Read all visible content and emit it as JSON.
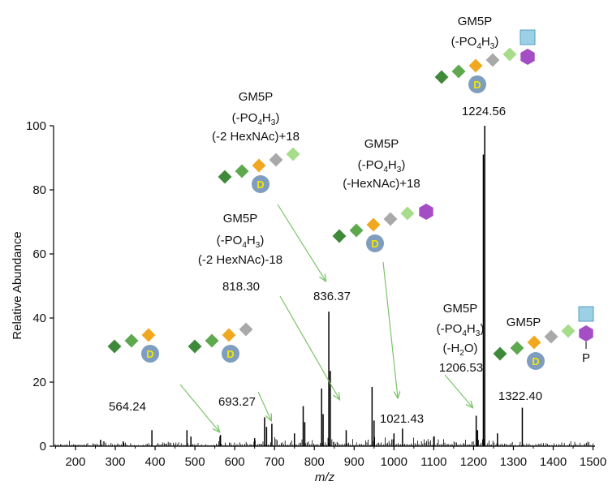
{
  "chart_data": {
    "type": "spectrum",
    "xlabel": "m/z",
    "ylabel": "Relative Abundance",
    "xlim": [
      145,
      1505
    ],
    "ylim": [
      0,
      100
    ],
    "xticks": [
      200,
      300,
      400,
      500,
      600,
      700,
      800,
      900,
      1000,
      1100,
      1200,
      1300,
      1400,
      1500
    ],
    "yticks": [
      0,
      20,
      40,
      60,
      80,
      100
    ],
    "peaks": [
      {
        "x": 263,
        "y": 2
      },
      {
        "x": 320,
        "y": 1.5
      },
      {
        "x": 392,
        "y": 5
      },
      {
        "x": 480,
        "y": 5
      },
      {
        "x": 490,
        "y": 3
      },
      {
        "x": 563,
        "y": 3
      },
      {
        "x": 564.24,
        "y": 3.5
      },
      {
        "x": 650,
        "y": 2.5
      },
      {
        "x": 675,
        "y": 9
      },
      {
        "x": 680,
        "y": 6
      },
      {
        "x": 693.27,
        "y": 7
      },
      {
        "x": 750,
        "y": 4
      },
      {
        "x": 772,
        "y": 12.5
      },
      {
        "x": 776,
        "y": 7.5
      },
      {
        "x": 818.3,
        "y": 18
      },
      {
        "x": 822,
        "y": 10
      },
      {
        "x": 836.37,
        "y": 42
      },
      {
        "x": 840,
        "y": 23.5
      },
      {
        "x": 880,
        "y": 5
      },
      {
        "x": 945,
        "y": 18.5
      },
      {
        "x": 950,
        "y": 8
      },
      {
        "x": 1000,
        "y": 4
      },
      {
        "x": 1021.43,
        "y": 5.5
      },
      {
        "x": 1100,
        "y": 3
      },
      {
        "x": 1206.53,
        "y": 9.5
      },
      {
        "x": 1210,
        "y": 5
      },
      {
        "x": 1224.56,
        "y": 91
      },
      {
        "x": 1228,
        "y": 100
      },
      {
        "x": 1260,
        "y": 4
      },
      {
        "x": 1322.4,
        "y": 12
      }
    ],
    "peak_labels": [
      {
        "text": "564.24"
      },
      {
        "text": "693.27"
      },
      {
        "text": "818.30"
      },
      {
        "text": "836.37"
      },
      {
        "text": "1021.43"
      },
      {
        "text": "1206.53"
      },
      {
        "text": "1224.56"
      },
      {
        "text": "1322.40"
      }
    ],
    "annotations": [
      {
        "lines": [
          "GM5P",
          "(-PO4H3)",
          "(-2 HexNAc)-18"
        ]
      },
      {
        "lines": [
          "GM5P",
          "(-PO4H3)",
          "(-2 HexNAc)+18"
        ]
      },
      {
        "lines": [
          "GM5P",
          "(-PO4H3)",
          "(-HexNAc)+18"
        ]
      },
      {
        "lines": [
          "GM5P",
          "(-PO4H3)"
        ]
      },
      {
        "lines": [
          "GM5P",
          "(-PO4H3)",
          "(-H2O)"
        ]
      },
      {
        "lines": [
          "GM5P"
        ]
      }
    ],
    "glyph_labels": {
      "domain": "D",
      "phosphate": "P"
    },
    "colors": {
      "peak": "#000000",
      "arrow": "#7dc36b",
      "dark_green": "#3f8a3a",
      "mid_green": "#5ea84d",
      "orange": "#f0a820",
      "gray": "#a9a9a9",
      "light_green": "#a6dc8a",
      "light_blue": "#9bd0e6",
      "purple": "#a44dc4",
      "domain_circle": "#7f9dbe",
      "domain_text": "#f4e600"
    }
  }
}
